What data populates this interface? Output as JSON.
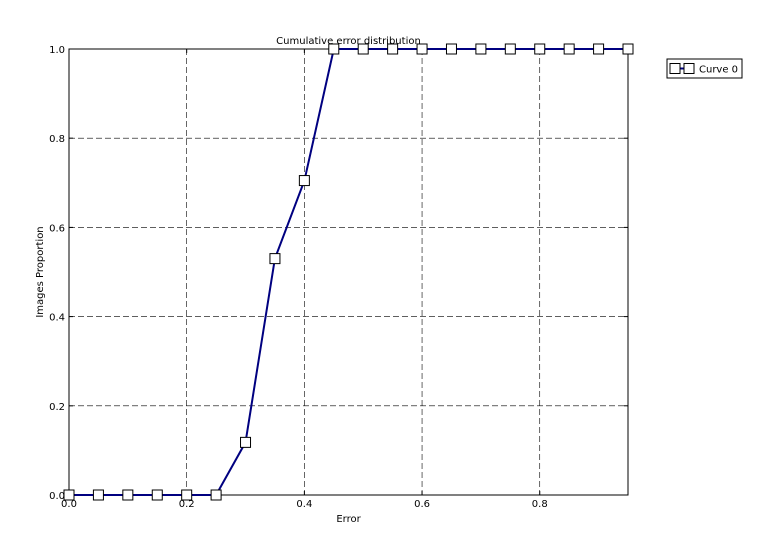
{
  "chart_data": {
    "type": "line",
    "title": "Cumulative error distribution",
    "xlabel": "Error",
    "ylabel": "Images Proportion",
    "xlim": [
      0.0,
      0.95
    ],
    "ylim": [
      0.0,
      1.0
    ],
    "xticks": [
      0.0,
      0.2,
      0.4,
      0.6,
      0.8
    ],
    "xtick_labels": [
      "0.0",
      "0.2",
      "0.4",
      "0.6",
      "0.8"
    ],
    "yticks": [
      0.0,
      0.2,
      0.4,
      0.6,
      0.8,
      1.0
    ],
    "ytick_labels": [
      "0.0",
      "0.2",
      "0.4",
      "0.6",
      "0.8",
      "1.0"
    ],
    "grid": true,
    "legend_position": "outside-top-right",
    "series": [
      {
        "name": "Curve 0",
        "color": "#000080",
        "marker": "square",
        "x": [
          0.0,
          0.05,
          0.1,
          0.15,
          0.2,
          0.25,
          0.3,
          0.35,
          0.4,
          0.45,
          0.5,
          0.55,
          0.6,
          0.65,
          0.7,
          0.75,
          0.8,
          0.85,
          0.9,
          0.95
        ],
        "y": [
          0.0,
          0.0,
          0.0,
          0.0,
          0.0,
          0.0,
          0.118,
          0.53,
          0.705,
          1.0,
          1.0,
          1.0,
          1.0,
          1.0,
          1.0,
          1.0,
          1.0,
          1.0,
          1.0,
          1.0
        ]
      }
    ]
  }
}
